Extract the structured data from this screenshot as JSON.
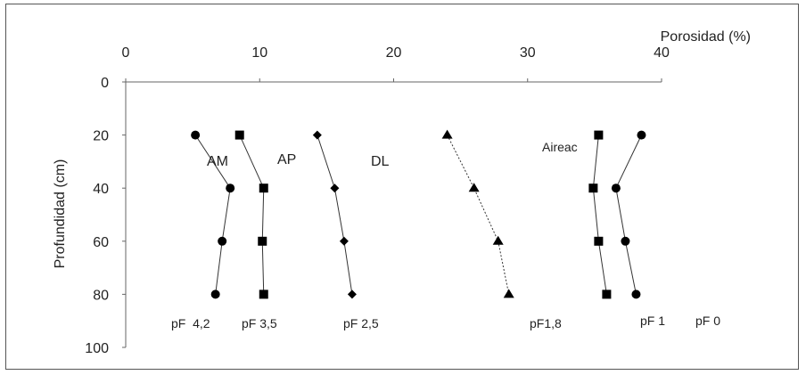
{
  "chart_data": {
    "type": "scatter",
    "xlabel": "Porosidad (%)",
    "ylabel": "Profundidad (cm)",
    "xlim": [
      0,
      40
    ],
    "ylim": [
      0,
      100
    ],
    "x_axis_position": "top",
    "y_axis_inverted": true,
    "x_ticks": [
      "0",
      "10",
      "20",
      "30",
      "40"
    ],
    "y_ticks": [
      "0",
      "20",
      "40",
      "60",
      "80",
      "100"
    ],
    "grid": false,
    "series": [
      {
        "name": "pF 4,2",
        "marker": "circle",
        "line": "solid",
        "points": [
          {
            "x": 5.2,
            "y": 20
          },
          {
            "x": 7.8,
            "y": 40
          },
          {
            "x": 7.2,
            "y": 60
          },
          {
            "x": 6.7,
            "y": 80
          }
        ]
      },
      {
        "name": "pF 3,5",
        "marker": "square",
        "line": "solid",
        "points": [
          {
            "x": 8.5,
            "y": 20
          },
          {
            "x": 10.3,
            "y": 40
          },
          {
            "x": 10.2,
            "y": 60
          },
          {
            "x": 10.3,
            "y": 80
          }
        ]
      },
      {
        "name": "pF 2,5",
        "marker": "diamond",
        "line": "solid",
        "points": [
          {
            "x": 14.3,
            "y": 20
          },
          {
            "x": 15.6,
            "y": 40
          },
          {
            "x": 16.3,
            "y": 60
          },
          {
            "x": 16.9,
            "y": 80
          }
        ]
      },
      {
        "name": "pF1,8",
        "marker": "triangle",
        "line": "dashed",
        "points": [
          {
            "x": 24.0,
            "y": 20
          },
          {
            "x": 26.0,
            "y": 40
          },
          {
            "x": 27.8,
            "y": 60
          },
          {
            "x": 28.6,
            "y": 80
          }
        ]
      },
      {
        "name": "pF 1",
        "marker": "square",
        "line": "solid",
        "points": [
          {
            "x": 35.3,
            "y": 20
          },
          {
            "x": 34.9,
            "y": 40
          },
          {
            "x": 35.3,
            "y": 60
          },
          {
            "x": 35.9,
            "y": 80
          }
        ]
      },
      {
        "name": "pF 0",
        "marker": "circle",
        "line": "solid",
        "points": [
          {
            "x": 38.5,
            "y": 20
          },
          {
            "x": 36.6,
            "y": 40
          },
          {
            "x": 37.3,
            "y": 60
          },
          {
            "x": 38.1,
            "y": 80
          }
        ]
      }
    ],
    "region_labels": [
      "AM",
      "AP",
      "DL",
      "Aireac"
    ],
    "series_labels": [
      "pF  4,2",
      "pF 3,5",
      "pF 2,5",
      "pF1,8",
      "pF 1",
      "pF 0"
    ]
  }
}
